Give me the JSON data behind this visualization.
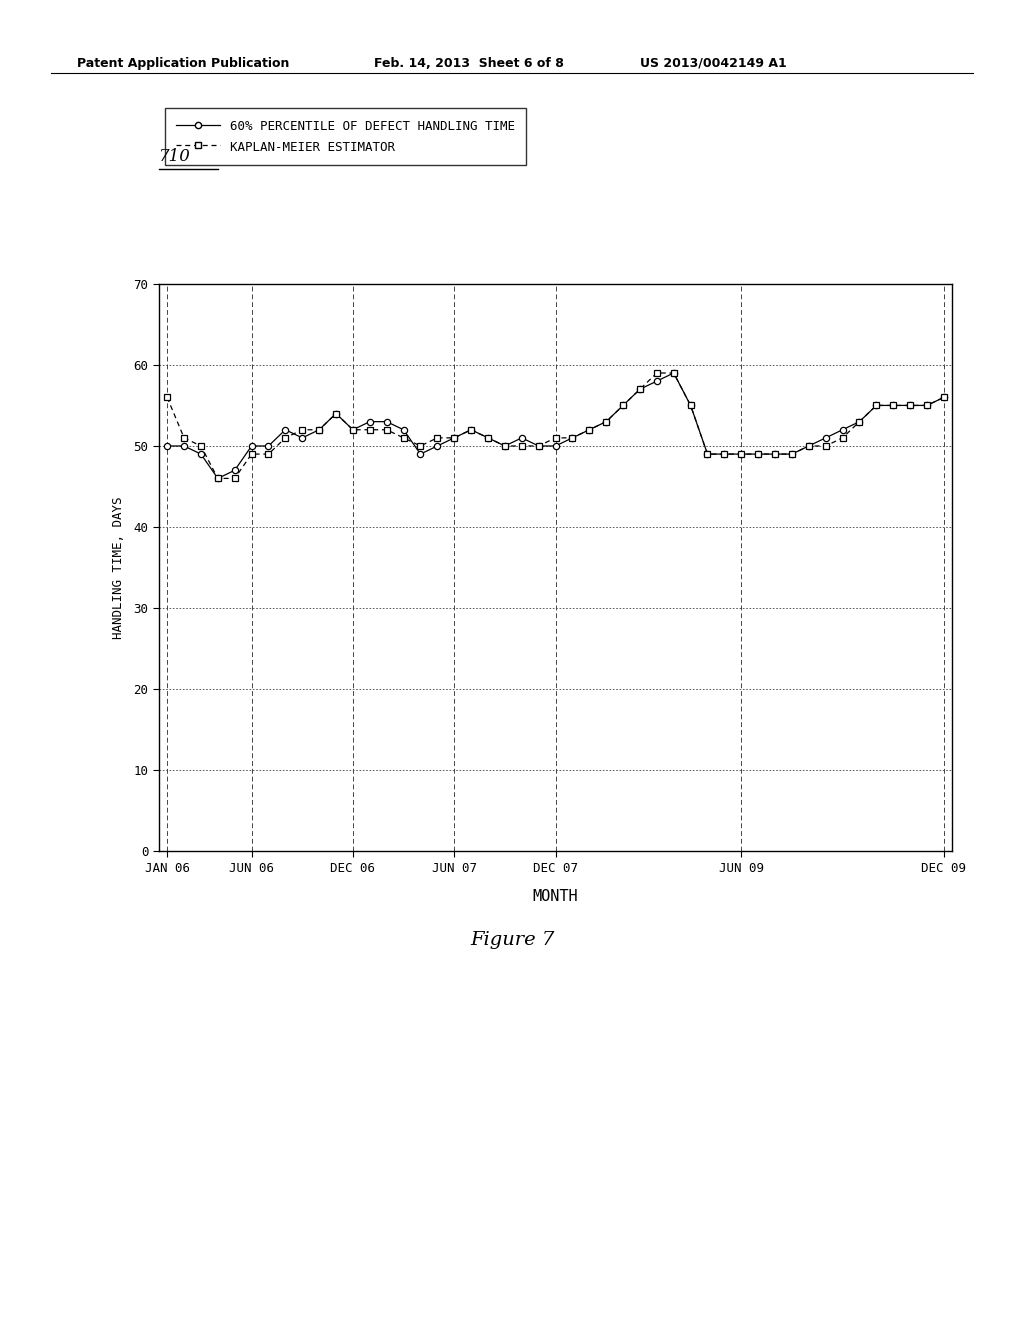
{
  "header_left": "Patent Application Publication",
  "header_mid": "Feb. 14, 2013  Sheet 6 of 8",
  "header_right": "US 2013/0042149 A1",
  "label_710": "710",
  "figure_caption": "Figure 7",
  "xlabel": "MONTH",
  "ylabel": "HANDLING TIME, DAYS",
  "ylim": [
    0,
    70
  ],
  "yticks": [
    0,
    10,
    20,
    30,
    40,
    50,
    60,
    70
  ],
  "xtick_labels": [
    "JAN 06",
    "JUN 06",
    "DEC 06",
    "JUN 07",
    "DEC 07",
    "JUN 09",
    "DEC 09"
  ],
  "legend_line1": "60% PERCENTILE OF DEFECT HANDLING TIME",
  "legend_line2": "KAPLAN-MEIER ESTIMATOR",
  "x_positions": [
    0,
    1,
    2,
    3,
    4,
    5,
    6,
    7,
    8,
    9,
    10,
    11,
    12,
    13,
    14,
    15,
    16,
    17,
    18,
    19,
    20,
    21,
    22,
    23,
    24,
    25,
    26,
    27,
    28,
    29,
    30,
    31,
    32,
    33,
    34,
    35,
    36,
    37,
    38,
    39,
    40,
    41,
    42,
    43,
    44,
    45,
    46
  ],
  "series1_y": [
    50,
    50,
    49,
    46,
    47,
    50,
    50,
    52,
    51,
    52,
    54,
    52,
    53,
    53,
    52,
    49,
    50,
    51,
    52,
    51,
    50,
    51,
    50,
    50,
    51,
    52,
    53,
    55,
    57,
    58,
    59,
    55,
    49,
    49,
    49,
    49,
    49,
    49,
    50,
    51,
    52,
    53,
    55,
    55,
    55,
    55,
    56
  ],
  "series2_y": [
    56,
    51,
    50,
    46,
    46,
    49,
    49,
    51,
    52,
    52,
    54,
    52,
    52,
    52,
    51,
    50,
    51,
    51,
    52,
    51,
    50,
    50,
    50,
    51,
    51,
    52,
    53,
    55,
    57,
    59,
    59,
    55,
    49,
    49,
    49,
    49,
    49,
    49,
    50,
    50,
    51,
    53,
    55,
    55,
    55,
    55,
    56
  ],
  "x_tick_positions": [
    0,
    5,
    11,
    17,
    23,
    34,
    46
  ],
  "background_color": "#ffffff",
  "line1_color": "#000000",
  "line2_color": "#000000"
}
